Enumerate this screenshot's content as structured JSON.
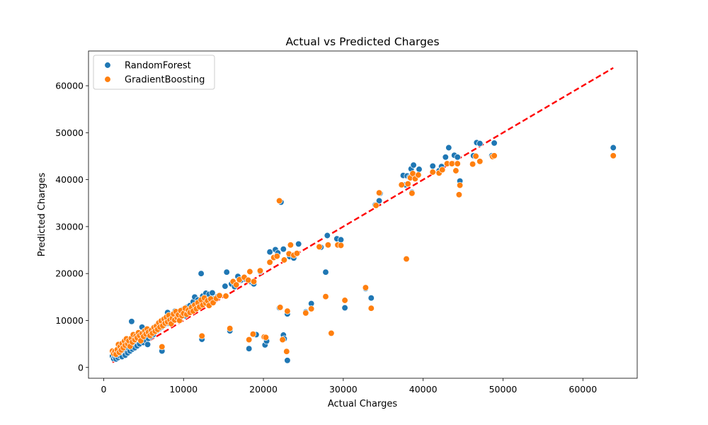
{
  "chart_data": {
    "type": "scatter",
    "title": "Actual vs Predicted Charges",
    "xlabel": "Actual Charges",
    "ylabel": "Predicted Charges",
    "xlim": [
      -1900,
      66800
    ],
    "ylim": [
      -2300,
      67400
    ],
    "xticks": [
      0,
      10000,
      20000,
      30000,
      40000,
      50000,
      60000
    ],
    "yticks": [
      0,
      10000,
      20000,
      30000,
      40000,
      50000,
      60000
    ],
    "xtick_labels": [
      "0",
      "10000",
      "20000",
      "30000",
      "40000",
      "50000",
      "60000"
    ],
    "ytick_labels": [
      "0",
      "10000",
      "20000",
      "30000",
      "40000",
      "50000",
      "60000"
    ],
    "grid": false,
    "legend": {
      "position": "top-left"
    },
    "reference_line": {
      "x": [
        1100,
        63800
      ],
      "y": [
        1100,
        63800
      ],
      "color": "#ff0000",
      "style": "dashed"
    },
    "series": [
      {
        "name": "RandomForest",
        "color": "#1f77b4",
        "points": [
          [
            1100,
            2400
          ],
          [
            1250,
            1900
          ],
          [
            1400,
            2300
          ],
          [
            1550,
            1800
          ],
          [
            1650,
            2600
          ],
          [
            1800,
            2100
          ],
          [
            1900,
            3200
          ],
          [
            2000,
            2500
          ],
          [
            2150,
            2900
          ],
          [
            2300,
            2300
          ],
          [
            2450,
            3400
          ],
          [
            2600,
            3000
          ],
          [
            2700,
            2600
          ],
          [
            2850,
            3600
          ],
          [
            3000,
            3100
          ],
          [
            3150,
            4000
          ],
          [
            3300,
            3500
          ],
          [
            3450,
            4300
          ],
          [
            3500,
            9800
          ],
          [
            3600,
            3900
          ],
          [
            3750,
            4700
          ],
          [
            3900,
            4200
          ],
          [
            4050,
            5100
          ],
          [
            4200,
            4600
          ],
          [
            4350,
            5500
          ],
          [
            4500,
            5000
          ],
          [
            4650,
            5900
          ],
          [
            4800,
            8600
          ],
          [
            4950,
            5300
          ],
          [
            5100,
            6300
          ],
          [
            5250,
            5800
          ],
          [
            5400,
            6700
          ],
          [
            5500,
            4900
          ],
          [
            5600,
            6200
          ],
          [
            5750,
            7100
          ],
          [
            5900,
            6600
          ],
          [
            6050,
            7500
          ],
          [
            6200,
            7000
          ],
          [
            6350,
            7900
          ],
          [
            6500,
            8800
          ],
          [
            6650,
            7800
          ],
          [
            6800,
            8700
          ],
          [
            6950,
            8200
          ],
          [
            7100,
            9100
          ],
          [
            7250,
            8600
          ],
          [
            7300,
            3500
          ],
          [
            7400,
            9500
          ],
          [
            7550,
            9000
          ],
          [
            7700,
            9900
          ],
          [
            7850,
            10800
          ],
          [
            8000,
            11700
          ],
          [
            8050,
            9400
          ],
          [
            8200,
            10300
          ],
          [
            8350,
            9800
          ],
          [
            8500,
            10700
          ],
          [
            8650,
            10200
          ],
          [
            8800,
            11100
          ],
          [
            8950,
            12000
          ],
          [
            9100,
            11500
          ],
          [
            9250,
            10900
          ],
          [
            9400,
            11900
          ],
          [
            9550,
            10400
          ],
          [
            9700,
            12200
          ],
          [
            9850,
            11300
          ],
          [
            10000,
            12400
          ],
          [
            10200,
            11000
          ],
          [
            10400,
            12800
          ],
          [
            10600,
            11600
          ],
          [
            10800,
            13200
          ],
          [
            11000,
            12100
          ],
          [
            11200,
            14000
          ],
          [
            11400,
            15000
          ],
          [
            11600,
            13000
          ],
          [
            11800,
            14400
          ],
          [
            12000,
            13500
          ],
          [
            12200,
            20000
          ],
          [
            12300,
            6000
          ],
          [
            12400,
            15200
          ],
          [
            12600,
            14000
          ],
          [
            12800,
            15800
          ],
          [
            13000,
            14800
          ],
          [
            13200,
            15600
          ],
          [
            13400,
            14200
          ],
          [
            13600,
            15900
          ],
          [
            13800,
            14600
          ],
          [
            14200,
            15000
          ],
          [
            15200,
            17300
          ],
          [
            15400,
            20300
          ],
          [
            15800,
            7800
          ],
          [
            16000,
            17800
          ],
          [
            16400,
            17200
          ],
          [
            16800,
            19400
          ],
          [
            17200,
            18600
          ],
          [
            17800,
            18800
          ],
          [
            18200,
            4000
          ],
          [
            18500,
            18200
          ],
          [
            18800,
            17800
          ],
          [
            19100,
            7000
          ],
          [
            19600,
            20400
          ],
          [
            20200,
            4800
          ],
          [
            20400,
            5600
          ],
          [
            20800,
            24600
          ],
          [
            21500,
            25100
          ],
          [
            21800,
            24400
          ],
          [
            22000,
            12700
          ],
          [
            22200,
            35200
          ],
          [
            22500,
            25200
          ],
          [
            22500,
            6900
          ],
          [
            22600,
            6100
          ],
          [
            23000,
            1500
          ],
          [
            23000,
            11400
          ],
          [
            23300,
            23600
          ],
          [
            23800,
            23300
          ],
          [
            24400,
            26300
          ],
          [
            25300,
            11800
          ],
          [
            26000,
            13600
          ],
          [
            27200,
            25600
          ],
          [
            27800,
            20300
          ],
          [
            28000,
            28100
          ],
          [
            28500,
            7300
          ],
          [
            29200,
            27400
          ],
          [
            29700,
            27200
          ],
          [
            30200,
            12700
          ],
          [
            32800,
            16800
          ],
          [
            33500,
            14800
          ],
          [
            34000,
            34600
          ],
          [
            34500,
            35500
          ],
          [
            34600,
            37100
          ],
          [
            37500,
            40900
          ],
          [
            37800,
            38900
          ],
          [
            38000,
            40800
          ],
          [
            38300,
            40500
          ],
          [
            38500,
            42300
          ],
          [
            38600,
            37300
          ],
          [
            38800,
            43100
          ],
          [
            39100,
            40700
          ],
          [
            39500,
            42200
          ],
          [
            41200,
            42900
          ],
          [
            42000,
            41900
          ],
          [
            42300,
            42800
          ],
          [
            42800,
            44800
          ],
          [
            43200,
            46800
          ],
          [
            43900,
            45200
          ],
          [
            44300,
            44800
          ],
          [
            44600,
            39700
          ],
          [
            46300,
            45100
          ],
          [
            46700,
            47900
          ],
          [
            47100,
            47700
          ],
          [
            48600,
            45100
          ],
          [
            48900,
            47800
          ],
          [
            63800,
            46800
          ]
        ]
      },
      {
        "name": "GradientBoosting",
        "color": "#ff7f0e",
        "points": [
          [
            1100,
            3500
          ],
          [
            1250,
            3000
          ],
          [
            1400,
            3400
          ],
          [
            1550,
            2800
          ],
          [
            1700,
            3800
          ],
          [
            1850,
            4900
          ],
          [
            1950,
            3200
          ],
          [
            2050,
            4400
          ],
          [
            2200,
            3700
          ],
          [
            2300,
            5100
          ],
          [
            2450,
            4200
          ],
          [
            2600,
            5600
          ],
          [
            2700,
            4700
          ],
          [
            2850,
            6100
          ],
          [
            3000,
            5000
          ],
          [
            3150,
            5700
          ],
          [
            3300,
            4500
          ],
          [
            3450,
            6200
          ],
          [
            3600,
            5400
          ],
          [
            3700,
            7000
          ],
          [
            3900,
            5900
          ],
          [
            4050,
            6700
          ],
          [
            4200,
            6300
          ],
          [
            4350,
            7400
          ],
          [
            4500,
            6800
          ],
          [
            4650,
            5700
          ],
          [
            4800,
            7200
          ],
          [
            5000,
            6600
          ],
          [
            5150,
            7800
          ],
          [
            5300,
            7100
          ],
          [
            5450,
            8200
          ],
          [
            5600,
            7500
          ],
          [
            5800,
            6800
          ],
          [
            5950,
            7900
          ],
          [
            6100,
            7300
          ],
          [
            6300,
            8500
          ],
          [
            6450,
            7700
          ],
          [
            6600,
            8800
          ],
          [
            6750,
            8100
          ],
          [
            6900,
            9500
          ],
          [
            7050,
            8600
          ],
          [
            7200,
            9900
          ],
          [
            7300,
            4400
          ],
          [
            7400,
            8900
          ],
          [
            7550,
            10300
          ],
          [
            7700,
            9400
          ],
          [
            7850,
            10700
          ],
          [
            8000,
            9700
          ],
          [
            8150,
            11100
          ],
          [
            8300,
            10100
          ],
          [
            8450,
            9300
          ],
          [
            8600,
            10500
          ],
          [
            8750,
            11400
          ],
          [
            8900,
            10100
          ],
          [
            9050,
            11900
          ],
          [
            9200,
            10600
          ],
          [
            9350,
            11200
          ],
          [
            9500,
            10000
          ],
          [
            9650,
            12100
          ],
          [
            9800,
            11000
          ],
          [
            10000,
            11500
          ],
          [
            10200,
            12600
          ],
          [
            10400,
            11300
          ],
          [
            10600,
            12200
          ],
          [
            10800,
            11700
          ],
          [
            11000,
            12800
          ],
          [
            11200,
            12000
          ],
          [
            11400,
            13300
          ],
          [
            11600,
            12500
          ],
          [
            11800,
            13800
          ],
          [
            12000,
            12900
          ],
          [
            12200,
            14400
          ],
          [
            12300,
            6700
          ],
          [
            12400,
            13300
          ],
          [
            12600,
            14800
          ],
          [
            12800,
            13700
          ],
          [
            13000,
            14200
          ],
          [
            13200,
            13200
          ],
          [
            13400,
            14600
          ],
          [
            13700,
            13800
          ],
          [
            14100,
            14700
          ],
          [
            14500,
            15300
          ],
          [
            15300,
            15200
          ],
          [
            15800,
            8300
          ],
          [
            16200,
            18300
          ],
          [
            16600,
            17600
          ],
          [
            17000,
            18700
          ],
          [
            17600,
            19200
          ],
          [
            18100,
            18600
          ],
          [
            18200,
            5900
          ],
          [
            18300,
            20400
          ],
          [
            18700,
            7100
          ],
          [
            18800,
            18300
          ],
          [
            19600,
            20600
          ],
          [
            20100,
            6500
          ],
          [
            20300,
            6400
          ],
          [
            20800,
            22400
          ],
          [
            21300,
            23400
          ],
          [
            21700,
            23700
          ],
          [
            22000,
            35500
          ],
          [
            22100,
            12800
          ],
          [
            22400,
            5900
          ],
          [
            22600,
            22900
          ],
          [
            22900,
            3400
          ],
          [
            23000,
            12000
          ],
          [
            23200,
            24200
          ],
          [
            23400,
            26100
          ],
          [
            23800,
            23900
          ],
          [
            24200,
            24300
          ],
          [
            25300,
            11600
          ],
          [
            26000,
            12500
          ],
          [
            27000,
            25700
          ],
          [
            27800,
            15100
          ],
          [
            28100,
            26100
          ],
          [
            28500,
            7300
          ],
          [
            29300,
            26100
          ],
          [
            29700,
            26000
          ],
          [
            30200,
            14300
          ],
          [
            32800,
            17000
          ],
          [
            33500,
            12600
          ],
          [
            34100,
            34500
          ],
          [
            34500,
            37200
          ],
          [
            37300,
            38900
          ],
          [
            37900,
            23100
          ],
          [
            38100,
            39100
          ],
          [
            38400,
            40400
          ],
          [
            38600,
            37100
          ],
          [
            38700,
            41300
          ],
          [
            39000,
            40200
          ],
          [
            39400,
            41000
          ],
          [
            41200,
            41600
          ],
          [
            42000,
            41400
          ],
          [
            42400,
            42100
          ],
          [
            43000,
            43400
          ],
          [
            43600,
            43400
          ],
          [
            44100,
            41900
          ],
          [
            44300,
            43400
          ],
          [
            44500,
            36800
          ],
          [
            44600,
            38800
          ],
          [
            46200,
            43300
          ],
          [
            46600,
            45000
          ],
          [
            47100,
            43900
          ],
          [
            48700,
            44900
          ],
          [
            48900,
            45100
          ],
          [
            63800,
            45100
          ]
        ]
      }
    ]
  }
}
